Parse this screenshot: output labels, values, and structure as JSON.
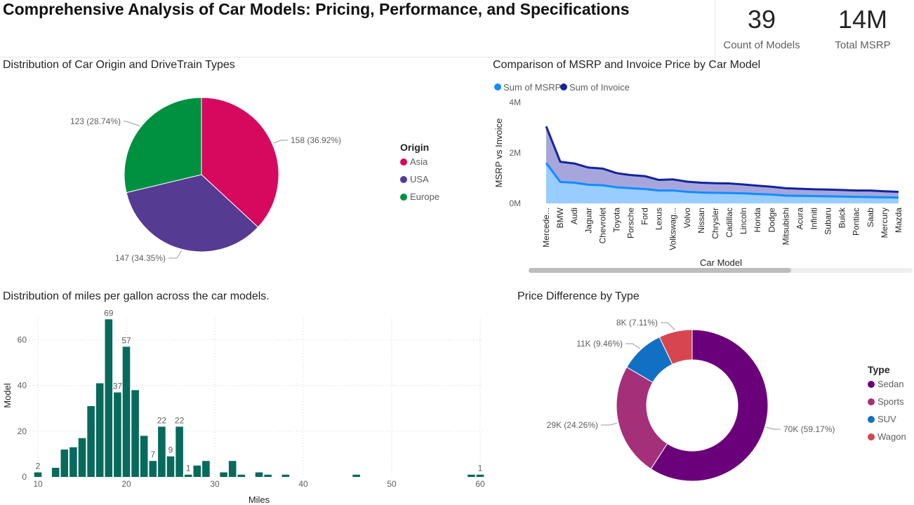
{
  "header": {
    "title": "Comprehensive Analysis of Car Models: Pricing, Performance, and Specifications"
  },
  "kpis": [
    {
      "value": "39",
      "label": "Count of Models"
    },
    {
      "value": "14M",
      "label": "Total MSRP"
    }
  ],
  "chart_data": [
    {
      "id": "origin_pie",
      "type": "pie",
      "title": "Distribution of Car Origin and DriveTrain Types",
      "legend_title": "Origin",
      "legend_position": "right",
      "slices": [
        {
          "name": "Asia",
          "value": 158,
          "label": "158 (36.92%)",
          "color": "#d6095f"
        },
        {
          "name": "USA",
          "value": 147,
          "label": "147 (34.35%)",
          "color": "#553b92"
        },
        {
          "name": "Europe",
          "value": 123,
          "label": "123 (28.74%)",
          "color": "#009140"
        }
      ]
    },
    {
      "id": "msrp_area",
      "type": "area",
      "title": "Comparison of MSRP and Invoice Price by Car Model",
      "xlabel": "Car Model",
      "ylabel": "MSRP vs Invoice",
      "ylim": [
        0,
        4000000
      ],
      "yticks": [
        "0M",
        "2M",
        "4M"
      ],
      "legend_position": "top-left",
      "categories": [
        "Mercede...",
        "BMW",
        "Audi",
        "Jaguar",
        "Chevrolet",
        "Toyota",
        "Porsche",
        "Ford",
        "Lexus",
        "Volkswag...",
        "Volvo",
        "Nissan",
        "Chrysler",
        "Cadillac",
        "Lincoln",
        "Honda",
        "Dodge",
        "Mitsubishi",
        "Acura",
        "Infiniti",
        "Subaru",
        "Buick",
        "Pontiac",
        "Saab",
        "Mercury",
        "Mazda"
      ],
      "series": [
        {
          "name": "Sum of MSRP",
          "color": "#118dff",
          "fill": "#99ccff",
          "values": [
            1600000,
            850000,
            820000,
            740000,
            720000,
            640000,
            600000,
            570000,
            510000,
            510000,
            460000,
            430000,
            420000,
            410000,
            400000,
            370000,
            350000,
            310000,
            300000,
            290000,
            280000,
            270000,
            260000,
            250000,
            240000,
            230000
          ]
        },
        {
          "name": "Sum of Invoice",
          "color": "#12239e",
          "fill": "#a6a6dd",
          "values": [
            3050000,
            1650000,
            1580000,
            1420000,
            1380000,
            1200000,
            1120000,
            1080000,
            930000,
            950000,
            860000,
            820000,
            800000,
            790000,
            750000,
            700000,
            660000,
            600000,
            580000,
            560000,
            550000,
            530000,
            510000,
            510000,
            480000,
            460000
          ]
        }
      ]
    },
    {
      "id": "mpg_hist",
      "type": "bar",
      "title": "Distribution of miles per gallon across the car models.",
      "xlabel": "Miles",
      "ylabel": "Model",
      "xlim": [
        10,
        60
      ],
      "ylim": [
        0,
        70
      ],
      "xticks": [
        "10",
        "20",
        "30",
        "40",
        "50",
        "60"
      ],
      "yticks": [
        "0",
        "20",
        "40",
        "60"
      ],
      "color": "#086a5c",
      "bins": [
        {
          "x": 10,
          "y": 2,
          "label": "2"
        },
        {
          "x": 12,
          "y": 4
        },
        {
          "x": 13,
          "y": 12
        },
        {
          "x": 14,
          "y": 13
        },
        {
          "x": 15,
          "y": 17
        },
        {
          "x": 16,
          "y": 31
        },
        {
          "x": 17,
          "y": 41
        },
        {
          "x": 18,
          "y": 69,
          "label": "69"
        },
        {
          "x": 19,
          "y": 37,
          "label": "37"
        },
        {
          "x": 20,
          "y": 57,
          "label": "57"
        },
        {
          "x": 21,
          "y": 38
        },
        {
          "x": 22,
          "y": 18
        },
        {
          "x": 23,
          "y": 7,
          "label": "7"
        },
        {
          "x": 24,
          "y": 22,
          "label": "22"
        },
        {
          "x": 25,
          "y": 9,
          "label": "9"
        },
        {
          "x": 26,
          "y": 22,
          "label": "22"
        },
        {
          "x": 27,
          "y": 1,
          "label": "1"
        },
        {
          "x": 28,
          "y": 5
        },
        {
          "x": 29,
          "y": 7
        },
        {
          "x": 31,
          "y": 2
        },
        {
          "x": 32,
          "y": 7
        },
        {
          "x": 33,
          "y": 1
        },
        {
          "x": 35,
          "y": 2
        },
        {
          "x": 36,
          "y": 1
        },
        {
          "x": 38,
          "y": 1
        },
        {
          "x": 46,
          "y": 1
        },
        {
          "x": 59,
          "y": 1
        },
        {
          "x": 60,
          "y": 1,
          "label": "1"
        }
      ]
    },
    {
      "id": "type_donut",
      "type": "pie",
      "title": "Price Difference by Type",
      "legend_title": "Type",
      "legend_position": "right",
      "slices": [
        {
          "name": "Sedan",
          "value": 59.17,
          "label": "70K (59.17%)",
          "color": "#6b007b"
        },
        {
          "name": "Sports",
          "value": 24.26,
          "label": "29K (24.26%)",
          "color": "#a43079"
        },
        {
          "name": "SUV",
          "value": 9.46,
          "label": "11K (9.46%)",
          "color": "#1170c4"
        },
        {
          "name": "Wagon",
          "value": 7.11,
          "label": "8K (7.11%)",
          "color": "#d64550"
        }
      ]
    }
  ]
}
